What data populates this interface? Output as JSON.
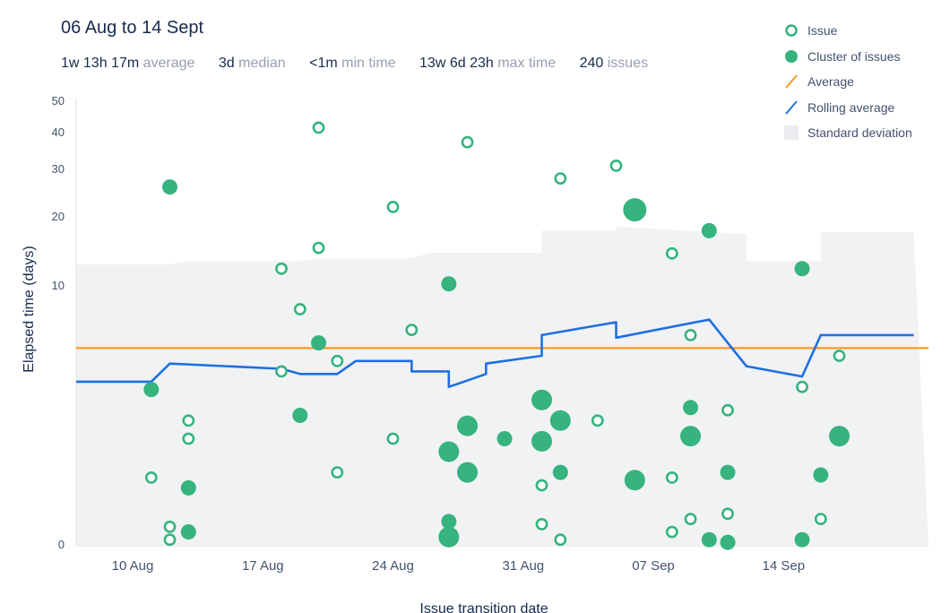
{
  "header": {
    "title": "06 Aug to 14 Sept",
    "stats": [
      {
        "value": "1w 13h 17m",
        "label": "average"
      },
      {
        "value": "3d",
        "label": "median"
      },
      {
        "value": "<1m",
        "label": "min time"
      },
      {
        "value": "13w 6d 23h",
        "label": "max time"
      },
      {
        "value": "240",
        "label": "issues"
      }
    ]
  },
  "legend": {
    "issue": "Issue",
    "cluster": "Cluster of issues",
    "average": "Average",
    "rolling": "Rolling average",
    "stddev": "Standard deviation"
  },
  "colors": {
    "point": "#36b37e",
    "average": "#ff991f",
    "rolling": "#1f6fe0",
    "stddev": "#ebecf0"
  },
  "chart_data": {
    "type": "scatter",
    "title": "06 Aug to 14 Sept",
    "xlabel": "Issue transition date",
    "ylabel": "Elapsed time (days)",
    "x_ticks": [
      "10 Aug",
      "17 Aug",
      "24 Aug",
      "31 Aug",
      "07 Sep",
      "14 Sep"
    ],
    "y_ticks": [
      "0",
      "10",
      "20",
      "30",
      "40",
      "50"
    ],
    "y_scale": "non-linear (compressed above 10 days)",
    "average_days": 7.6,
    "issues": [
      {
        "date": "2018-08-11",
        "days": 2.6
      },
      {
        "date": "2018-08-12",
        "days": 0.7
      },
      {
        "date": "2018-08-12",
        "days": 0.2
      },
      {
        "date": "2018-08-13",
        "days": 4.8
      },
      {
        "date": "2018-08-13",
        "days": 4.1
      },
      {
        "date": "2018-08-18",
        "days": 12.5
      },
      {
        "date": "2018-08-18",
        "days": 6.7
      },
      {
        "date": "2018-08-19",
        "days": 9.1
      },
      {
        "date": "2018-08-20",
        "days": 41.6
      },
      {
        "date": "2018-08-20",
        "days": 15.5
      },
      {
        "date": "2018-08-21",
        "days": 7.1
      },
      {
        "date": "2018-08-21",
        "days": 2.8
      },
      {
        "date": "2018-08-24",
        "days": 22.1
      },
      {
        "date": "2018-08-24",
        "days": 4.1
      },
      {
        "date": "2018-08-25",
        "days": 8.3
      },
      {
        "date": "2018-08-28",
        "days": 37.4
      },
      {
        "date": "2018-09-01",
        "days": 2.3
      },
      {
        "date": "2018-09-01",
        "days": 0.8
      },
      {
        "date": "2018-09-02",
        "days": 0.2
      },
      {
        "date": "2018-09-02",
        "days": 28.1
      },
      {
        "date": "2018-09-04",
        "days": 4.8
      },
      {
        "date": "2018-09-05",
        "days": 31.0
      },
      {
        "date": "2018-09-08",
        "days": 14.7
      },
      {
        "date": "2018-09-08",
        "days": 2.6
      },
      {
        "date": "2018-09-08",
        "days": 0.5
      },
      {
        "date": "2018-09-09",
        "days": 1.0
      },
      {
        "date": "2018-09-09",
        "days": 8.1
      },
      {
        "date": "2018-09-11",
        "days": 5.2
      },
      {
        "date": "2018-09-11",
        "days": 1.2
      },
      {
        "date": "2018-09-15",
        "days": 6.1
      },
      {
        "date": "2018-09-16",
        "days": 1.0
      },
      {
        "date": "2018-09-17",
        "days": 7.3
      }
    ],
    "clusters": [
      {
        "date": "2018-08-11",
        "days": 6.0,
        "size": "small"
      },
      {
        "date": "2018-08-12",
        "days": 26.3,
        "size": "small"
      },
      {
        "date": "2018-08-13",
        "days": 2.2,
        "size": "small"
      },
      {
        "date": "2018-08-13",
        "days": 0.5,
        "size": "small"
      },
      {
        "date": "2018-08-19",
        "days": 5.0,
        "size": "small"
      },
      {
        "date": "2018-08-20",
        "days": 7.8,
        "size": "small"
      },
      {
        "date": "2018-08-27",
        "days": 10.3,
        "size": "small"
      },
      {
        "date": "2018-08-27",
        "days": 3.6,
        "size": "medium"
      },
      {
        "date": "2018-08-27",
        "days": 0.9,
        "size": "small"
      },
      {
        "date": "2018-08-27",
        "days": 0.3,
        "size": "medium"
      },
      {
        "date": "2018-08-28",
        "days": 2.8,
        "size": "medium"
      },
      {
        "date": "2018-08-28",
        "days": 4.6,
        "size": "medium"
      },
      {
        "date": "2018-08-30",
        "days": 4.1,
        "size": "small"
      },
      {
        "date": "2018-09-01",
        "days": 5.6,
        "size": "medium"
      },
      {
        "date": "2018-09-01",
        "days": 4.0,
        "size": "medium"
      },
      {
        "date": "2018-09-02",
        "days": 4.8,
        "size": "medium"
      },
      {
        "date": "2018-09-02",
        "days": 2.8,
        "size": "small"
      },
      {
        "date": "2018-09-06",
        "days": 21.5,
        "size": "large"
      },
      {
        "date": "2018-09-06",
        "days": 2.5,
        "size": "medium"
      },
      {
        "date": "2018-09-09",
        "days": 5.3,
        "size": "small"
      },
      {
        "date": "2018-09-09",
        "days": 4.2,
        "size": "medium"
      },
      {
        "date": "2018-09-10",
        "days": 0.2,
        "size": "small"
      },
      {
        "date": "2018-09-10",
        "days": 18.0,
        "size": "small"
      },
      {
        "date": "2018-09-11",
        "days": 2.8,
        "size": "small"
      },
      {
        "date": "2018-09-11",
        "days": 0.1,
        "size": "small"
      },
      {
        "date": "2018-09-15",
        "days": 0.2,
        "size": "small"
      },
      {
        "date": "2018-09-15",
        "days": 12.5,
        "size": "small"
      },
      {
        "date": "2018-09-16",
        "days": 2.7,
        "size": "small"
      },
      {
        "date": "2018-09-17",
        "days": 4.2,
        "size": "medium"
      }
    ],
    "rolling_average": [
      {
        "date": "2018-08-06",
        "days": 6.3
      },
      {
        "date": "2018-08-11",
        "days": 6.3
      },
      {
        "date": "2018-08-12",
        "days": 7.0
      },
      {
        "date": "2018-08-18",
        "days": 6.8
      },
      {
        "date": "2018-08-19",
        "days": 6.6
      },
      {
        "date": "2018-08-21",
        "days": 6.6
      },
      {
        "date": "2018-08-22",
        "days": 7.1
      },
      {
        "date": "2018-08-25",
        "days": 7.1
      },
      {
        "date": "2018-08-25",
        "days": 6.7
      },
      {
        "date": "2018-08-27",
        "days": 6.7
      },
      {
        "date": "2018-08-27",
        "days": 6.1
      },
      {
        "date": "2018-08-29",
        "days": 6.6
      },
      {
        "date": "2018-08-29",
        "days": 7.0
      },
      {
        "date": "2018-09-01",
        "days": 7.3
      },
      {
        "date": "2018-09-01",
        "days": 8.1
      },
      {
        "date": "2018-09-05",
        "days": 8.6
      },
      {
        "date": "2018-09-05",
        "days": 8.0
      },
      {
        "date": "2018-09-10",
        "days": 8.7
      },
      {
        "date": "2018-09-12",
        "days": 6.9
      },
      {
        "date": "2018-09-15",
        "days": 6.5
      },
      {
        "date": "2018-09-16",
        "days": 8.1
      },
      {
        "date": "2018-09-21",
        "days": 8.1
      }
    ],
    "std_deviation_upper": [
      {
        "date": "2018-08-06",
        "days": 13.1
      },
      {
        "date": "2018-08-12",
        "days": 13.1
      },
      {
        "date": "2018-08-13",
        "days": 13.6
      },
      {
        "date": "2018-08-19",
        "days": 13.6
      },
      {
        "date": "2018-08-20",
        "days": 14.0
      },
      {
        "date": "2018-08-25",
        "days": 14.0
      },
      {
        "date": "2018-08-26",
        "days": 14.8
      },
      {
        "date": "2018-09-01",
        "days": 14.8
      },
      {
        "date": "2018-09-01",
        "days": 18.0
      },
      {
        "date": "2018-09-05",
        "days": 18.0
      },
      {
        "date": "2018-09-05",
        "days": 18.6
      },
      {
        "date": "2018-09-12",
        "days": 17.5
      },
      {
        "date": "2018-09-12",
        "days": 13.6
      },
      {
        "date": "2018-09-16",
        "days": 13.6
      },
      {
        "date": "2018-09-16",
        "days": 17.8
      },
      {
        "date": "2018-09-21",
        "days": 17.8
      }
    ]
  }
}
